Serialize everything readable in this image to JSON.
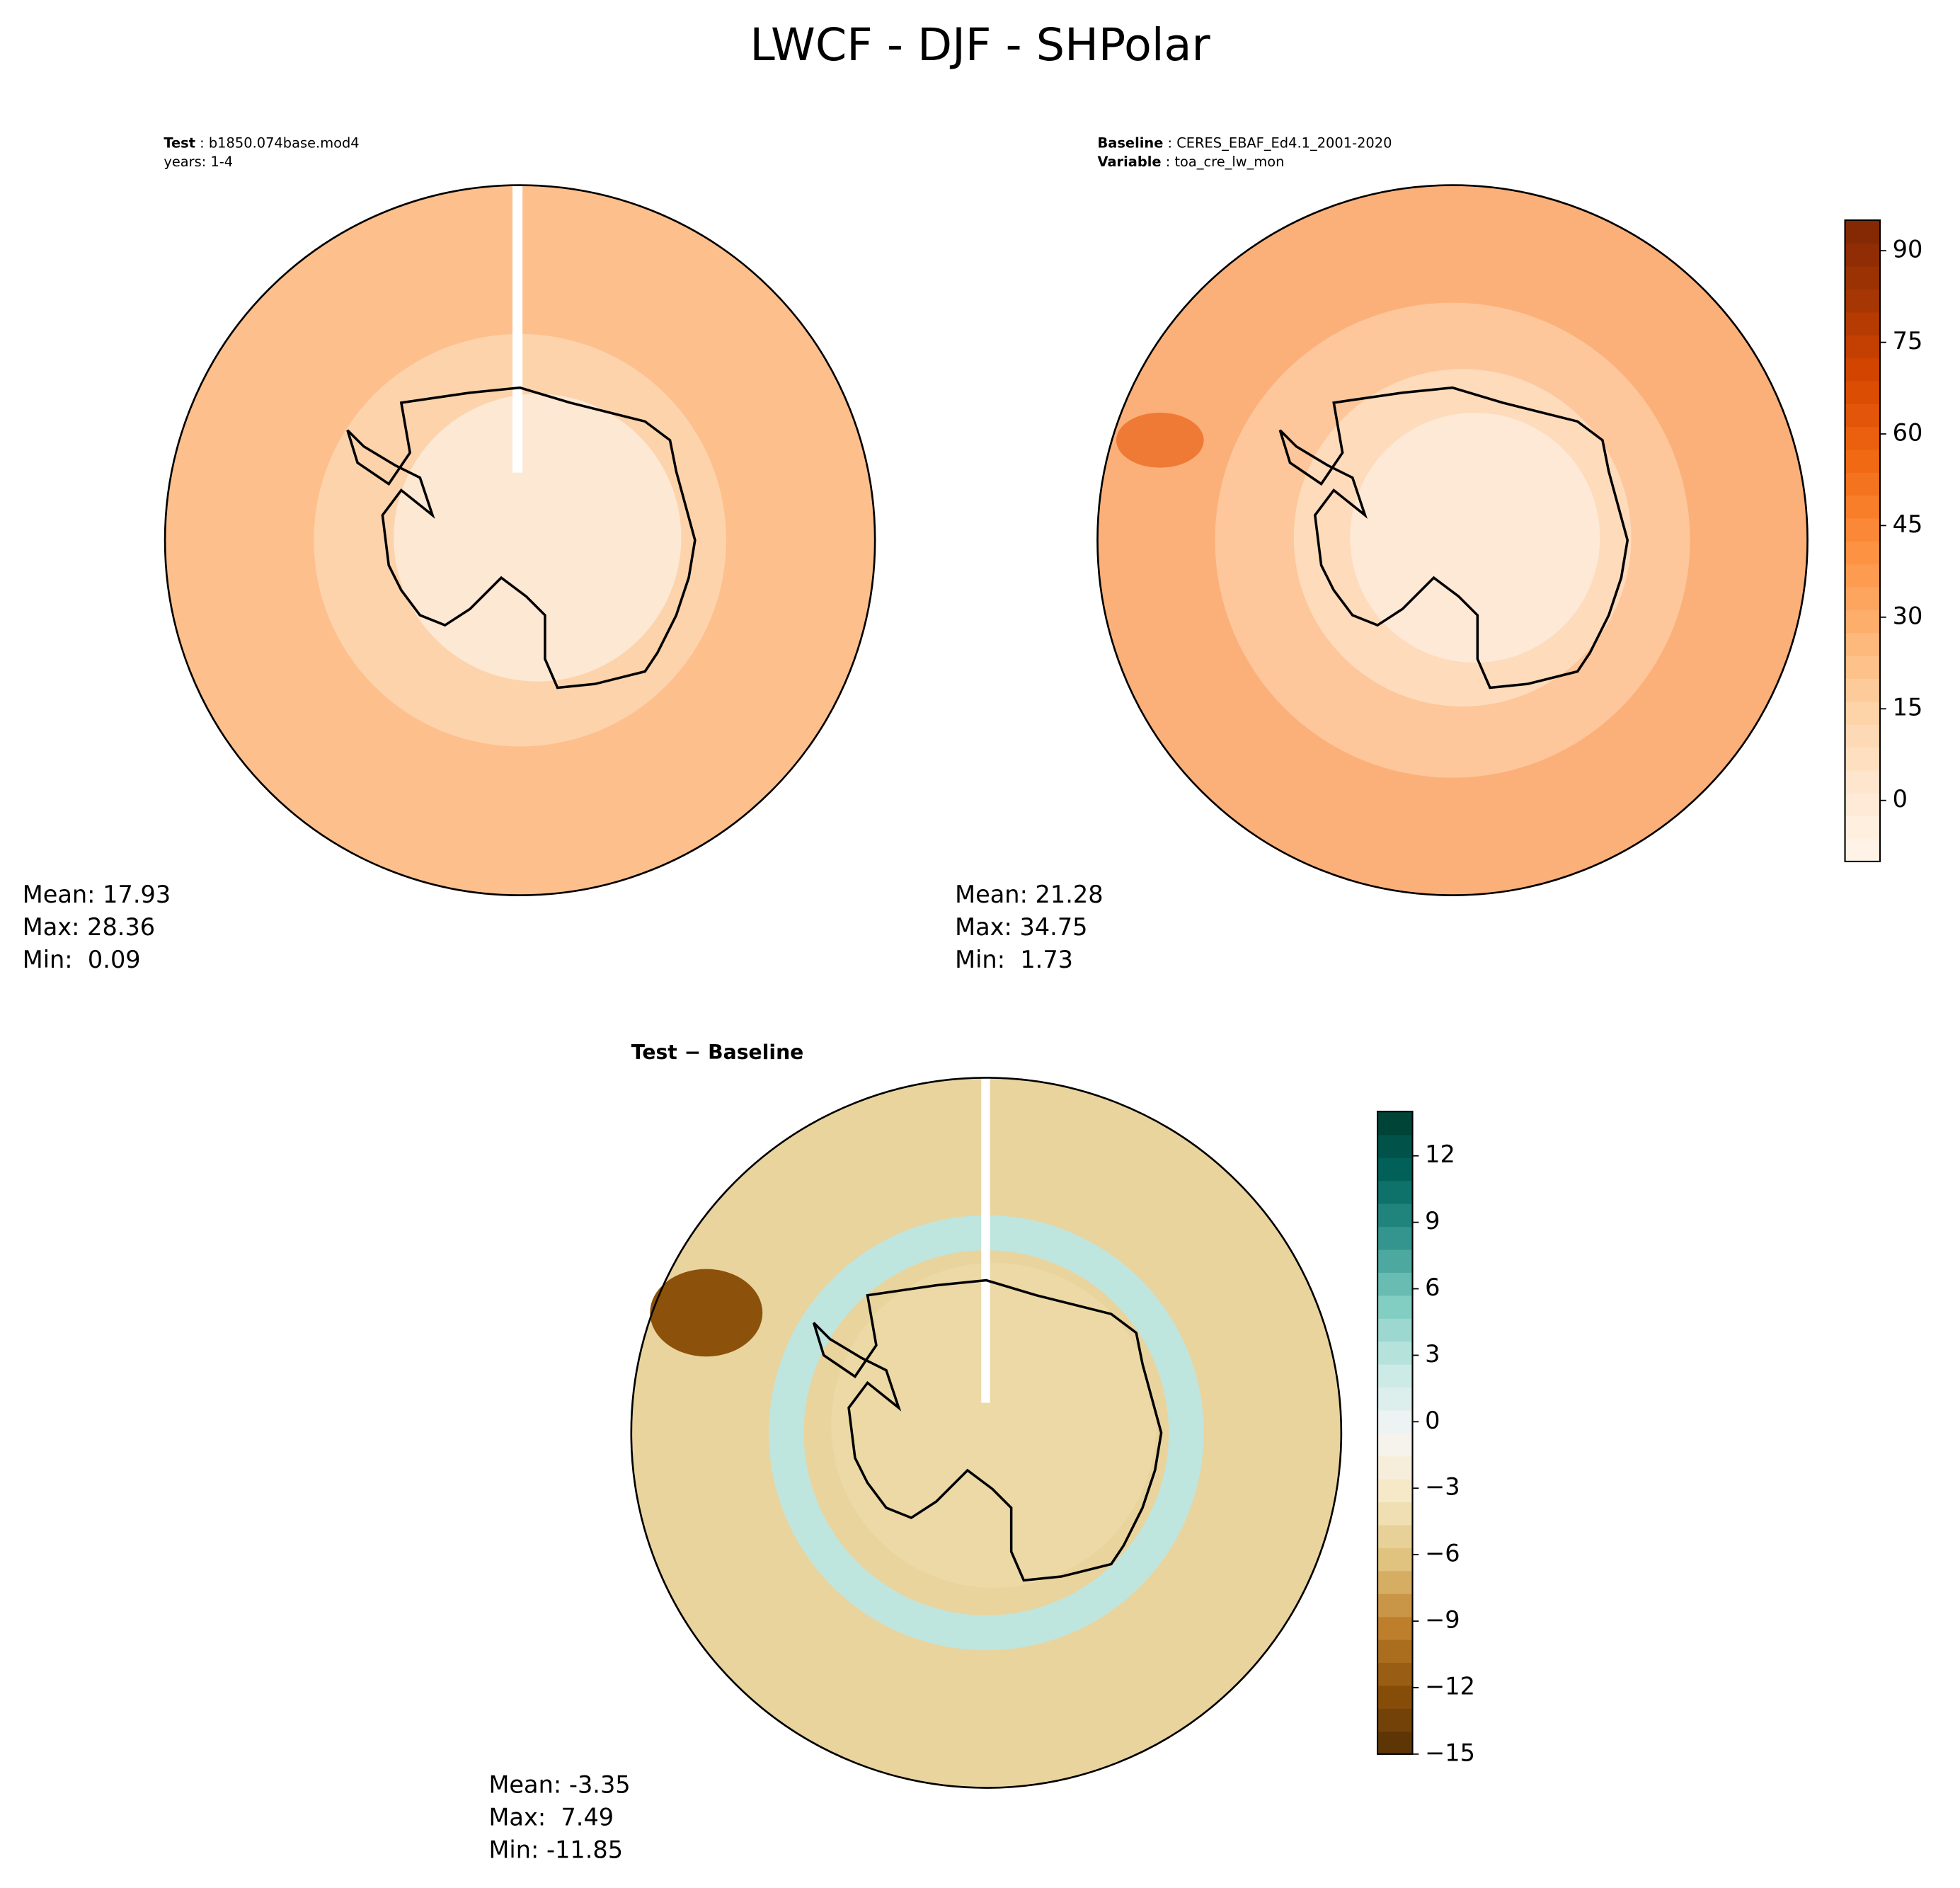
{
  "title": "LWCF - DJF - SHPolar",
  "panels": [
    {
      "header": [
        {
          "key": "Test",
          "text": " : b1850.074base.mod4"
        },
        {
          "text": "years: 1-4"
        }
      ],
      "stats": [
        "Mean: 17.93",
        "Max: 28.36",
        "Min:  0.09"
      ]
    },
    {
      "header": [
        {
          "key": "Baseline",
          "text": " : CERES_EBAF_Ed4.1_2001-2020"
        },
        {
          "key": "Variable",
          "text": " : toa_cre_lw_mon"
        }
      ],
      "stats": [
        "Mean: 21.28",
        "Max: 34.75",
        "Min:  1.73"
      ]
    },
    {
      "title": "Test − Baseline",
      "stats": [
        "Mean: -3.35",
        "Max:  7.49",
        "Min: -11.85"
      ]
    }
  ],
  "colorbars": [
    {
      "ylim": [
        -10,
        95
      ],
      "yticks": [
        0,
        15,
        30,
        45,
        60,
        75,
        90
      ],
      "colors": [
        "#fff5eb",
        "#fee6ce",
        "#fdd0a2",
        "#fdae6b",
        "#fd8d3c",
        "#f16913",
        "#d94801",
        "#a63603",
        "#7f2704"
      ]
    },
    {
      "ylim": [
        -15,
        14
      ],
      "yticks": [
        {
          "value": -15,
          "label": "−15"
        },
        {
          "value": -12,
          "label": "−12"
        },
        {
          "value": -9,
          "label": "−9"
        },
        {
          "value": -6,
          "label": "−6"
        },
        {
          "value": -3,
          "label": "−3"
        },
        0,
        3,
        6,
        9,
        12
      ],
      "colors": [
        "#543005",
        "#8c510a",
        "#bf812d",
        "#dfc27d",
        "#f6e8c3",
        "#f5f5f5",
        "#c7eae5",
        "#80cdc1",
        "#35978f",
        "#01665e",
        "#003c30"
      ]
    }
  ]
}
